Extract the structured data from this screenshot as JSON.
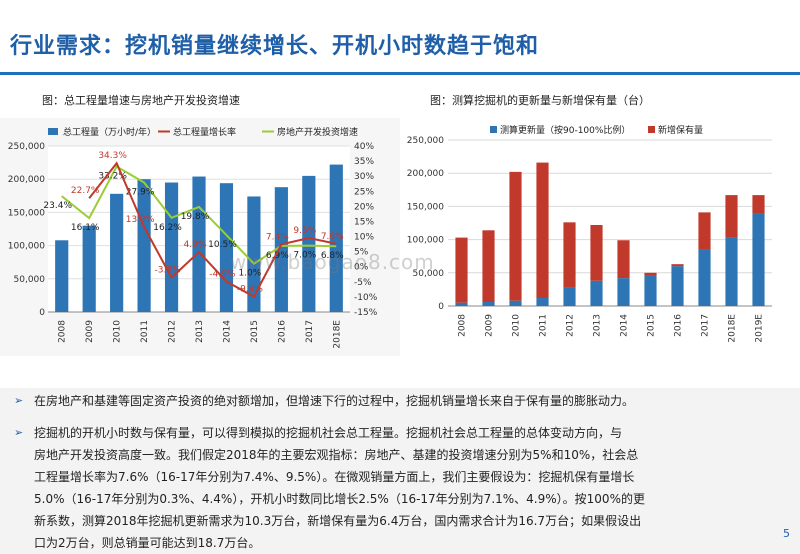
{
  "title": "行业需求：挖机销量继续增长、开机小时数趋于饱和",
  "left_caption": "图：总工程量增速与房地产开发投资增速",
  "right_caption": "图：测算挖掘机的更新量与新增保有量（台）",
  "watermark": "www.baogao8.com",
  "page_number": "5",
  "colors": {
    "bar_blue": "#2e75b6",
    "bar_red": "#c0392b",
    "line_red": "#c0392b",
    "line_green": "#9acd32",
    "accent": "#1f5fa8"
  },
  "bullets": [
    {
      "icon": "arrow-icon",
      "text": "在房地产和基建等固定资产投资的绝对额增加，但增速下行的过程中，挖掘机销量增长来自于保有量的膨胀动力。"
    },
    {
      "icon": "arrow-icon",
      "lines": [
        "挖掘机的开机小时数与保有量，可以得到模拟的挖掘机社会总工程量。挖掘机社会总工程量的总体变动方向，与",
        "房地产开发投资高度一致。我们假定2018年的主要宏观指标：房地产、基建的投资增速分别为5%和10%，社会总",
        "工程量增长率为7.6%（16-17年分别为7.4%、9.5%）。在微观销量方面上，我们主要假设为：挖掘机保有量增长",
        "5.0%（16-17年分别为0.3%、4.4%），开机小时数同比增长2.5%（16-17年分别为7.1%、4.9%）。按100%的更",
        "新系数，测算2018年挖掘机更新需求为10.3万台，新增保有量为6.4万台，国内需求合计为16.7万台；如果假设出",
        "口为2万台，则总销量可能达到18.7万台。"
      ]
    }
  ],
  "chart_data": [
    {
      "type": "bar",
      "legend": [
        "总工程量（万小时/年）",
        "总工程量增长率",
        "房地产开发投资增速"
      ],
      "categories": [
        "2008",
        "2009",
        "2010",
        "2011",
        "2012",
        "2013",
        "2014",
        "2015",
        "2016",
        "2017",
        "2018E"
      ],
      "series": [
        {
          "name": "总工程量（万小时/年）",
          "type": "bar",
          "axis": "left",
          "values": [
            108000,
            130000,
            178000,
            200000,
            195000,
            204000,
            194000,
            174000,
            188000,
            205000,
            222000
          ]
        },
        {
          "name": "总工程量增长率",
          "type": "line",
          "axis": "right",
          "values": [
            null,
            22.7,
            34.3,
            13.2,
            -3.6,
            4.9,
            -4.9,
            -9.9,
            7.4,
            9.5,
            7.6
          ],
          "labels": [
            "",
            "22.7%",
            "34.3%",
            "13.2%",
            "-3.6%",
            "4.9%",
            "-4.9%",
            "-9.9%",
            "7.4%",
            "9.5%",
            "7.6%"
          ]
        },
        {
          "name": "房地产开发投资增速",
          "type": "line",
          "axis": "right",
          "values": [
            23.4,
            16.1,
            33.2,
            27.9,
            16.2,
            19.8,
            10.5,
            1.0,
            6.9,
            7.0,
            6.8
          ],
          "labels": [
            "23.4%",
            "16.1%",
            "33.2%",
            "27.9%",
            "16.2%",
            "19.8%",
            "10.5%",
            "1.0%",
            "6.9%",
            "7.0%",
            "6.8%"
          ]
        }
      ],
      "ylim_left": [
        0,
        250000
      ],
      "yticks_left": [
        "0",
        "50,000",
        "100,000",
        "150,000",
        "200,000",
        "250,000"
      ],
      "ylim_right": [
        -15,
        40
      ],
      "yticks_right": [
        "-15%",
        "-10%",
        "-5%",
        "0%",
        "5%",
        "10%",
        "15%",
        "20%",
        "25%",
        "30%",
        "35%",
        "40%"
      ]
    },
    {
      "type": "bar",
      "stacked": true,
      "legend": [
        "测算更新量（按90-100%比例）",
        "新增保有量"
      ],
      "categories": [
        "2008",
        "2009",
        "2010",
        "2011",
        "2012",
        "2013",
        "2014",
        "2015",
        "2016",
        "2017",
        "2018E",
        "2019E"
      ],
      "series": [
        {
          "name": "测算更新量（按90-100%比例）",
          "values": [
            5000,
            6000,
            8000,
            12000,
            28000,
            38000,
            42000,
            46000,
            60000,
            85000,
            103000,
            140000
          ]
        },
        {
          "name": "新增保有量",
          "values": [
            98000,
            108000,
            194000,
            204000,
            98000,
            84000,
            57000,
            4000,
            3000,
            56000,
            64000,
            27000
          ]
        }
      ],
      "ylim": [
        0,
        250000
      ],
      "yticks": [
        "0",
        "50,000",
        "100,000",
        "150,000",
        "200,000",
        "250,000"
      ]
    }
  ]
}
